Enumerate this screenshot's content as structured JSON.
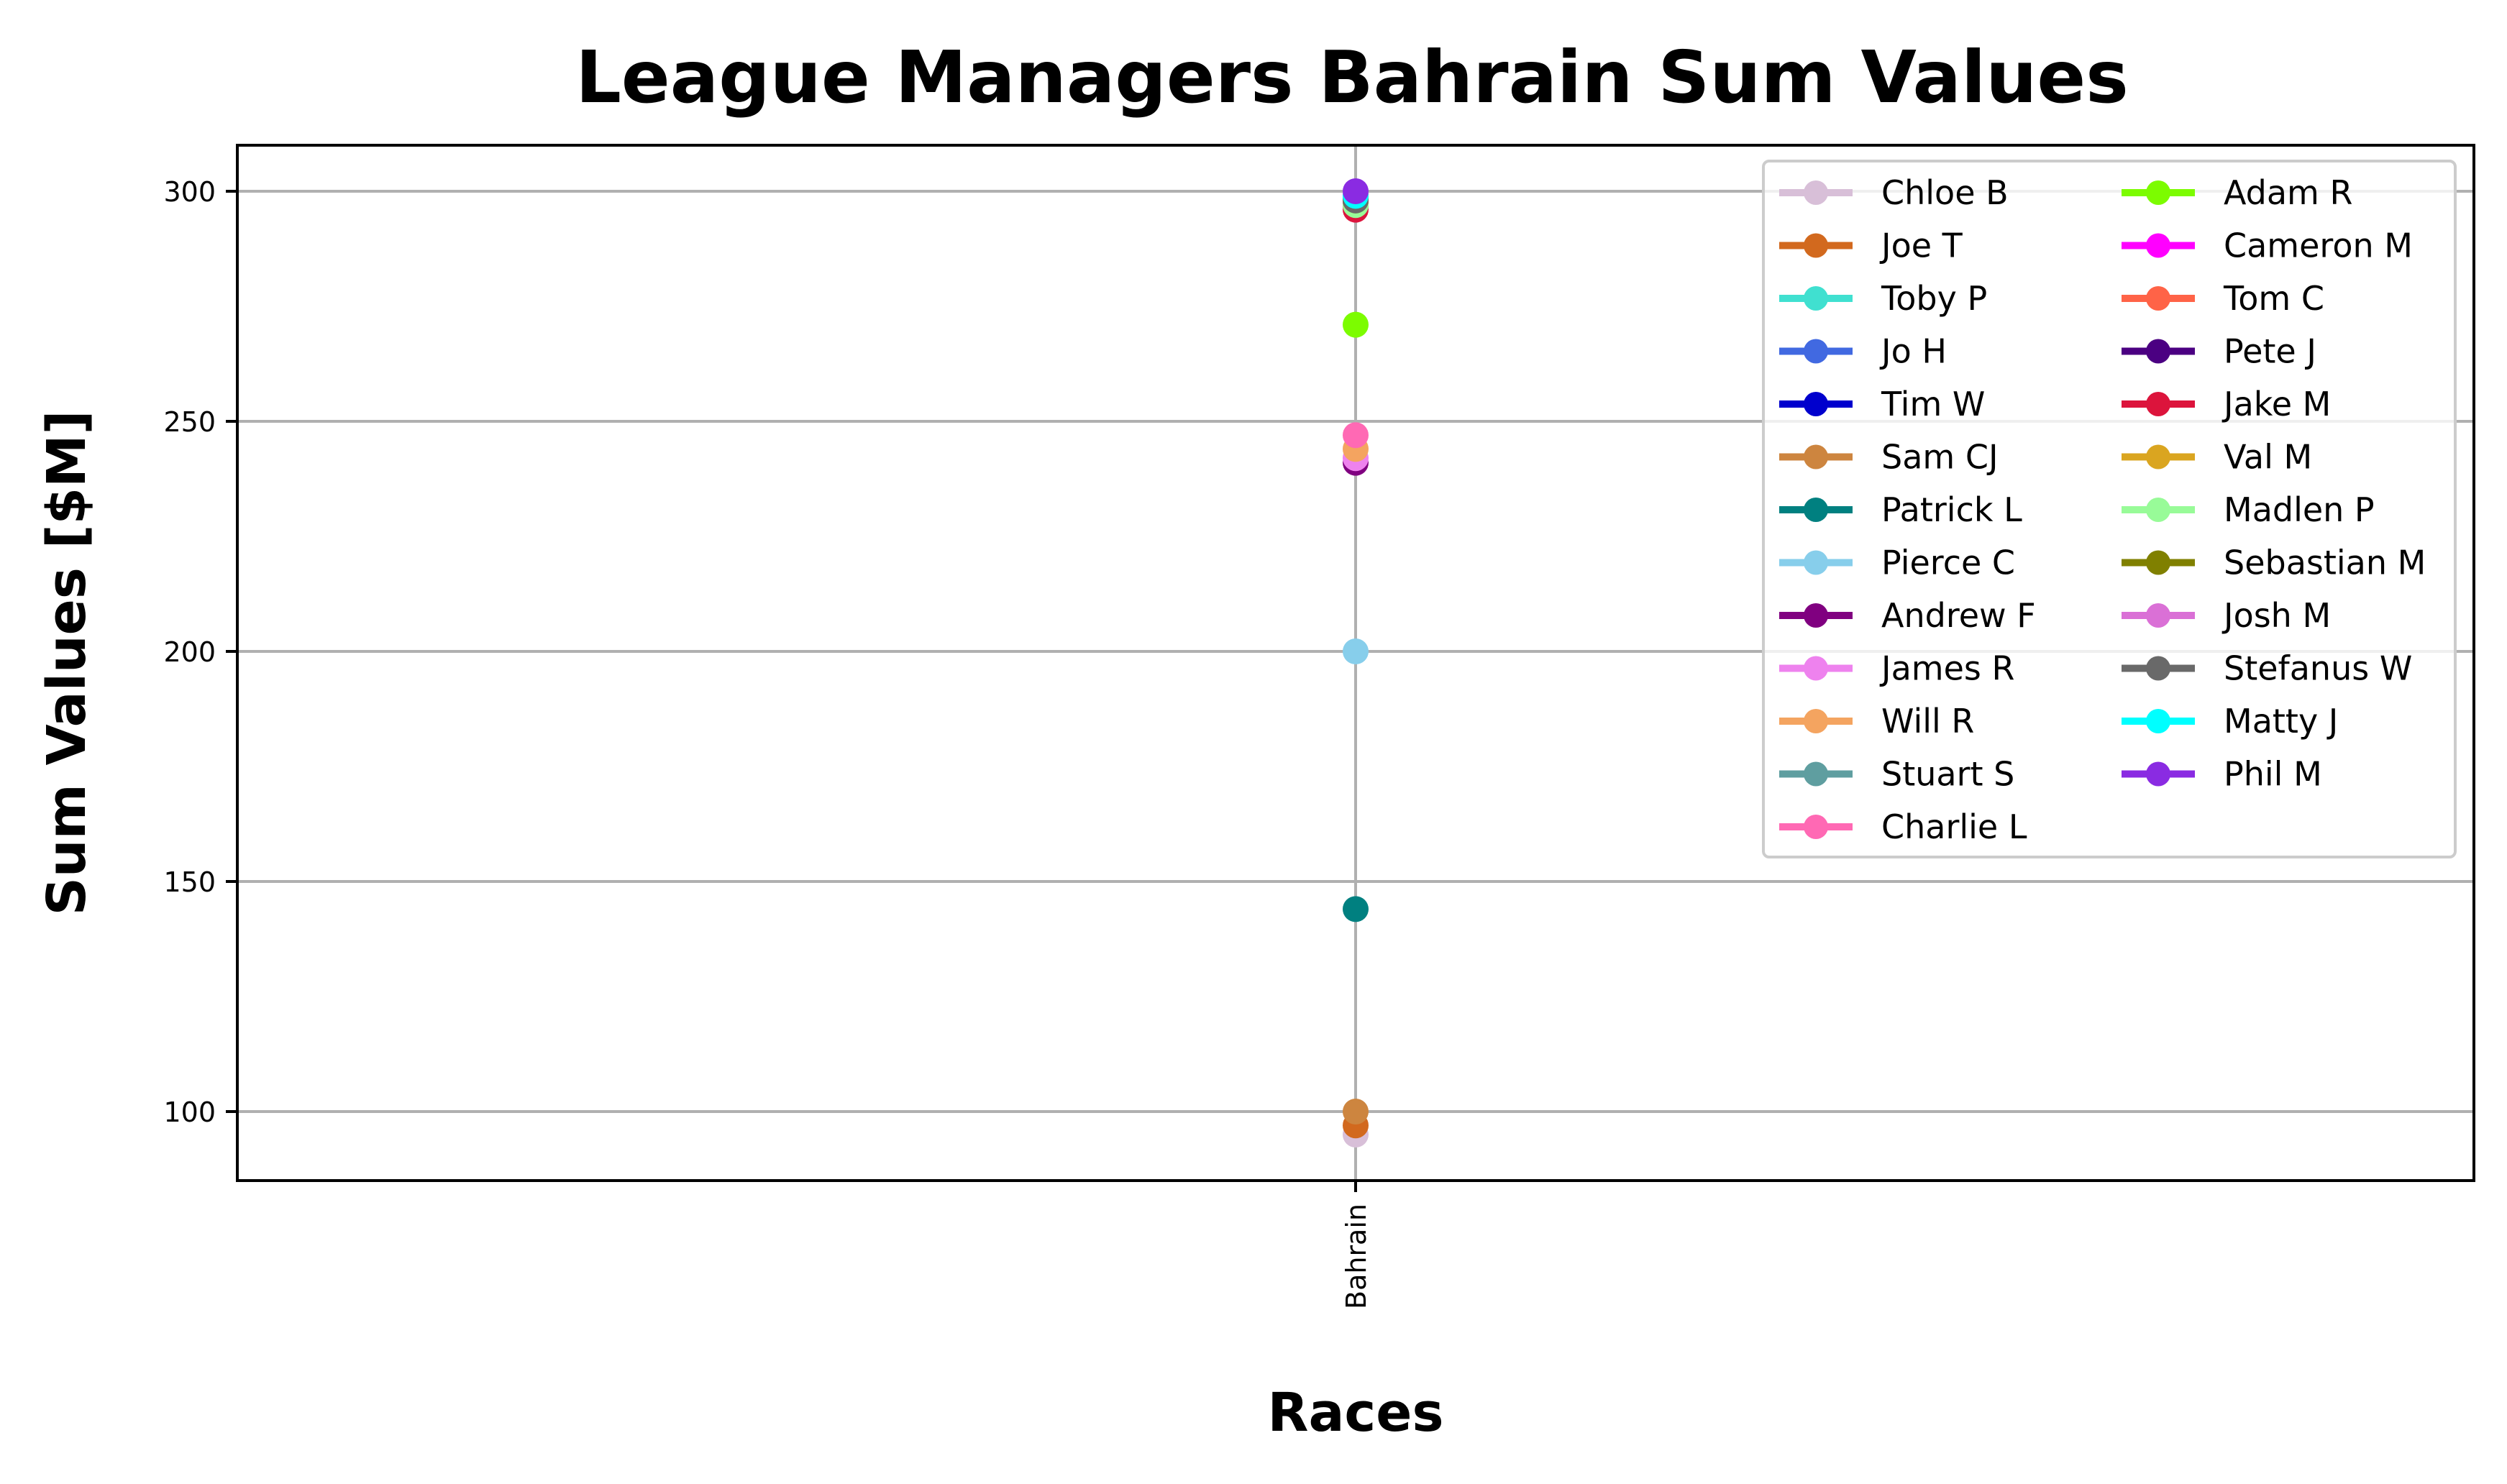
{
  "chart_data": {
    "type": "line",
    "title": "League Managers Bahrain Sum Values",
    "xlabel": "Races",
    "ylabel": "Sum Values [$M]",
    "categories": [
      "Bahrain"
    ],
    "ylim": [
      85,
      310
    ],
    "yticks": [
      100,
      150,
      200,
      250,
      300
    ],
    "grid": true,
    "legend_placement": "top-right",
    "legend_columns": 2,
    "series": [
      {
        "name": "Chloe B",
        "color": "#d8bfd8",
        "values": [
          95
        ]
      },
      {
        "name": "Joe T",
        "color": "#d2691e",
        "values": [
          97
        ]
      },
      {
        "name": "Toby P",
        "color": "#40e0d0",
        "values": [
          298
        ]
      },
      {
        "name": "Jo H",
        "color": "#4169e1",
        "values": [
          297
        ]
      },
      {
        "name": "Tim W",
        "color": "#0000cd",
        "values": [
          298
        ]
      },
      {
        "name": "Sam CJ",
        "color": "#cd853f",
        "values": [
          100
        ]
      },
      {
        "name": "Patrick L",
        "color": "#008080",
        "values": [
          144
        ]
      },
      {
        "name": "Pierce C",
        "color": "#87ceeb",
        "values": [
          200
        ]
      },
      {
        "name": "Andrew F",
        "color": "#800080",
        "values": [
          241
        ]
      },
      {
        "name": "James R",
        "color": "#ee82ee",
        "values": [
          242
        ]
      },
      {
        "name": "Will R",
        "color": "#f4a460",
        "values": [
          244
        ]
      },
      {
        "name": "Stuart S",
        "color": "#5f9ea0",
        "values": [
          297
        ]
      },
      {
        "name": "Charlie L",
        "color": "#ff69b4",
        "values": [
          247
        ]
      },
      {
        "name": "Adam R",
        "color": "#7cfc00",
        "values": [
          271
        ]
      },
      {
        "name": "Cameron M",
        "color": "#ff00ff",
        "values": [
          298
        ]
      },
      {
        "name": "Tom C",
        "color": "#ff6347",
        "values": [
          297
        ]
      },
      {
        "name": "Pete J",
        "color": "#4b0082",
        "values": [
          299
        ]
      },
      {
        "name": "Jake M",
        "color": "#dc143c",
        "values": [
          296
        ]
      },
      {
        "name": "Val M",
        "color": "#daa520",
        "values": [
          298
        ]
      },
      {
        "name": "Madlen P",
        "color": "#98fb98",
        "values": [
          297
        ]
      },
      {
        "name": "Sebastian M",
        "color": "#808000",
        "values": [
          298
        ]
      },
      {
        "name": "Josh M",
        "color": "#da70d6",
        "values": [
          299
        ]
      },
      {
        "name": "Stefanus W",
        "color": "#696969",
        "values": [
          298
        ]
      },
      {
        "name": "Matty J",
        "color": "#00ffff",
        "values": [
          299
        ]
      },
      {
        "name": "Phil M",
        "color": "#8a2be2",
        "values": [
          300
        ]
      }
    ]
  }
}
